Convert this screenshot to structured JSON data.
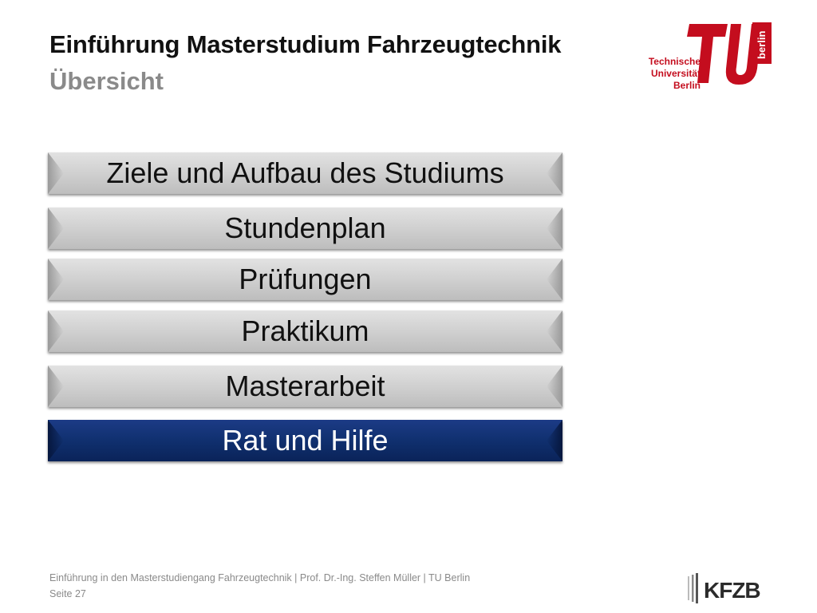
{
  "header": {
    "title": "Einführung Masterstudium Fahrzeugtechnik",
    "subtitle": "Übersicht"
  },
  "logo": {
    "line1": "Technische",
    "line2": "Universität",
    "line3": "Berlin",
    "vertical_text": "berlin",
    "color": "#c40d1e"
  },
  "menu": {
    "items": [
      {
        "label": "Ziele und Aufbau des Studiums",
        "active": false
      },
      {
        "label": "Stundenplan",
        "active": false
      },
      {
        "label": "Prüfungen",
        "active": false
      },
      {
        "label": "Praktikum",
        "active": false
      },
      {
        "label": "Masterarbeit",
        "active": false
      },
      {
        "label": "Rat und Hilfe",
        "active": true
      }
    ],
    "active_color": "#10306f",
    "inactive_color": "#d2d2d2"
  },
  "footer": {
    "line1": "Einführung in den Masterstudiengang Fahrzeugtechnik | Prof. Dr.-Ing. Steffen Müller | TU Berlin",
    "line2": "Seite 27"
  },
  "kfzb_logo": {
    "text": "KFZB"
  }
}
